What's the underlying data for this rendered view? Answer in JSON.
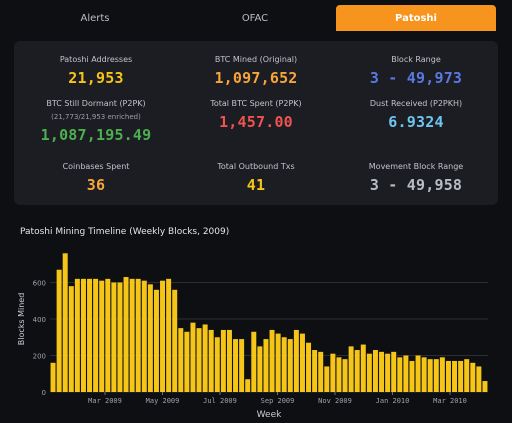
{
  "tabs": [
    {
      "label": "Alerts"
    },
    {
      "label": "OFAC"
    },
    {
      "label": "Patoshi"
    }
  ],
  "stats": {
    "patoshi_addresses": {
      "label": "Patoshi Addresses",
      "value": "21,953"
    },
    "btc_mined": {
      "label": "BTC Mined (Original)",
      "value": "1,097,652"
    },
    "block_range": {
      "label": "Block Range",
      "value": "3 - 49,973"
    },
    "btc_dormant": {
      "label": "BTC Still Dormant (P2PK)",
      "sub": "(21,773/21,953 enriched)",
      "value": "1,087,195.49"
    },
    "btc_spent": {
      "label": "Total BTC Spent (P2PK)",
      "value": "1,457.00"
    },
    "dust": {
      "label": "Dust Received (P2PKH)",
      "value": "6.9324"
    },
    "coinbases_spent": {
      "label": "Coinbases Spent",
      "value": "36"
    },
    "outbound": {
      "label": "Total Outbound Txs",
      "value": "41"
    },
    "movement_range": {
      "label": "Movement Block Range",
      "value": "3 - 49,958"
    }
  },
  "colors": {
    "accent": "#f7941d",
    "yellow": "#f5c518",
    "orange": "#f7a53a",
    "red": "#ef5350",
    "green": "#4caf50",
    "blue": "#5a78e0",
    "cyan": "#6ec6f0",
    "grey": "#b8bcc4"
  },
  "chart_data": {
    "type": "bar",
    "title": "Patoshi Mining Timeline (Weekly Blocks, 2009)",
    "xlabel": "Week",
    "ylabel": "Blocks Mined",
    "ylim": [
      0,
      800
    ],
    "yticks": [
      0,
      200,
      400,
      600
    ],
    "xticks": [
      "Mar 2009",
      "May 2009",
      "Jul 2009",
      "Sep 2009",
      "Nov 2009",
      "Jan 2010",
      "Mar 2010"
    ],
    "values": [
      160,
      670,
      760,
      580,
      620,
      620,
      620,
      620,
      610,
      620,
      600,
      600,
      630,
      620,
      620,
      610,
      590,
      560,
      610,
      620,
      560,
      350,
      330,
      380,
      350,
      370,
      340,
      300,
      340,
      340,
      290,
      290,
      70,
      330,
      250,
      290,
      340,
      320,
      300,
      290,
      340,
      320,
      270,
      230,
      220,
      140,
      210,
      190,
      180,
      250,
      230,
      260,
      210,
      230,
      220,
      210,
      220,
      190,
      200,
      170,
      200,
      190,
      180,
      180,
      190,
      170,
      170,
      170,
      180,
      160,
      140,
      60
    ],
    "grid": true,
    "legend": "none"
  }
}
